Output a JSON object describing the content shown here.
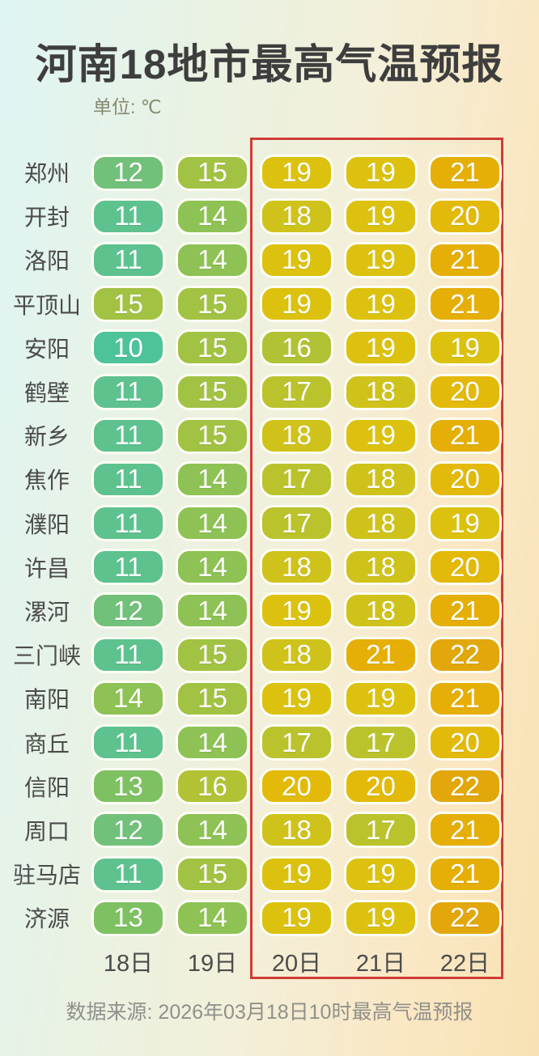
{
  "title": "河南18地市最高气温预报",
  "unit_label": "单位: ℃",
  "footer": "数据来源: 2026年03月18日10时最高气温预报",
  "highlight_border_color": "#d03c36",
  "chart_data": {
    "type": "heatmap",
    "title": "河南18地市最高气温预报",
    "unit": "℃",
    "columns": [
      "18日",
      "19日",
      "20日",
      "21日",
      "22日"
    ],
    "highlighted_columns": [
      "20日",
      "21日",
      "22日"
    ],
    "rows": [
      {
        "city": "郑州",
        "temps": [
          12,
          15,
          19,
          19,
          21
        ]
      },
      {
        "city": "开封",
        "temps": [
          11,
          14,
          18,
          19,
          20
        ]
      },
      {
        "city": "洛阳",
        "temps": [
          11,
          14,
          19,
          19,
          21
        ]
      },
      {
        "city": "平顶山",
        "temps": [
          15,
          15,
          19,
          19,
          21
        ]
      },
      {
        "city": "安阳",
        "temps": [
          10,
          15,
          16,
          19,
          19
        ]
      },
      {
        "city": "鹤壁",
        "temps": [
          11,
          15,
          17,
          18,
          20
        ]
      },
      {
        "city": "新乡",
        "temps": [
          11,
          15,
          18,
          19,
          21
        ]
      },
      {
        "city": "焦作",
        "temps": [
          11,
          14,
          17,
          18,
          20
        ]
      },
      {
        "city": "濮阳",
        "temps": [
          11,
          14,
          17,
          18,
          19
        ]
      },
      {
        "city": "许昌",
        "temps": [
          11,
          14,
          18,
          18,
          20
        ]
      },
      {
        "city": "漯河",
        "temps": [
          12,
          14,
          19,
          18,
          21
        ]
      },
      {
        "city": "三门峡",
        "temps": [
          11,
          15,
          18,
          21,
          22
        ]
      },
      {
        "city": "南阳",
        "temps": [
          14,
          15,
          19,
          19,
          21
        ]
      },
      {
        "city": "商丘",
        "temps": [
          11,
          14,
          17,
          17,
          20
        ]
      },
      {
        "city": "信阳",
        "temps": [
          13,
          16,
          20,
          20,
          22
        ]
      },
      {
        "city": "周口",
        "temps": [
          12,
          14,
          18,
          17,
          21
        ]
      },
      {
        "city": "驻马店",
        "temps": [
          11,
          15,
          19,
          19,
          21
        ]
      },
      {
        "city": "济源",
        "temps": [
          13,
          14,
          19,
          19,
          22
        ]
      }
    ],
    "color_scale": {
      "10": "#4ec39a",
      "11": "#5dc28e",
      "12": "#72c17a",
      "13": "#7ec163",
      "14": "#8ec254",
      "15": "#a2c243",
      "16": "#b1c335",
      "17": "#bbc32c",
      "18": "#cfc31b",
      "19": "#dcc20e",
      "20": "#e3ba09",
      "21": "#e5af07",
      "22": "#e2a70b"
    }
  }
}
